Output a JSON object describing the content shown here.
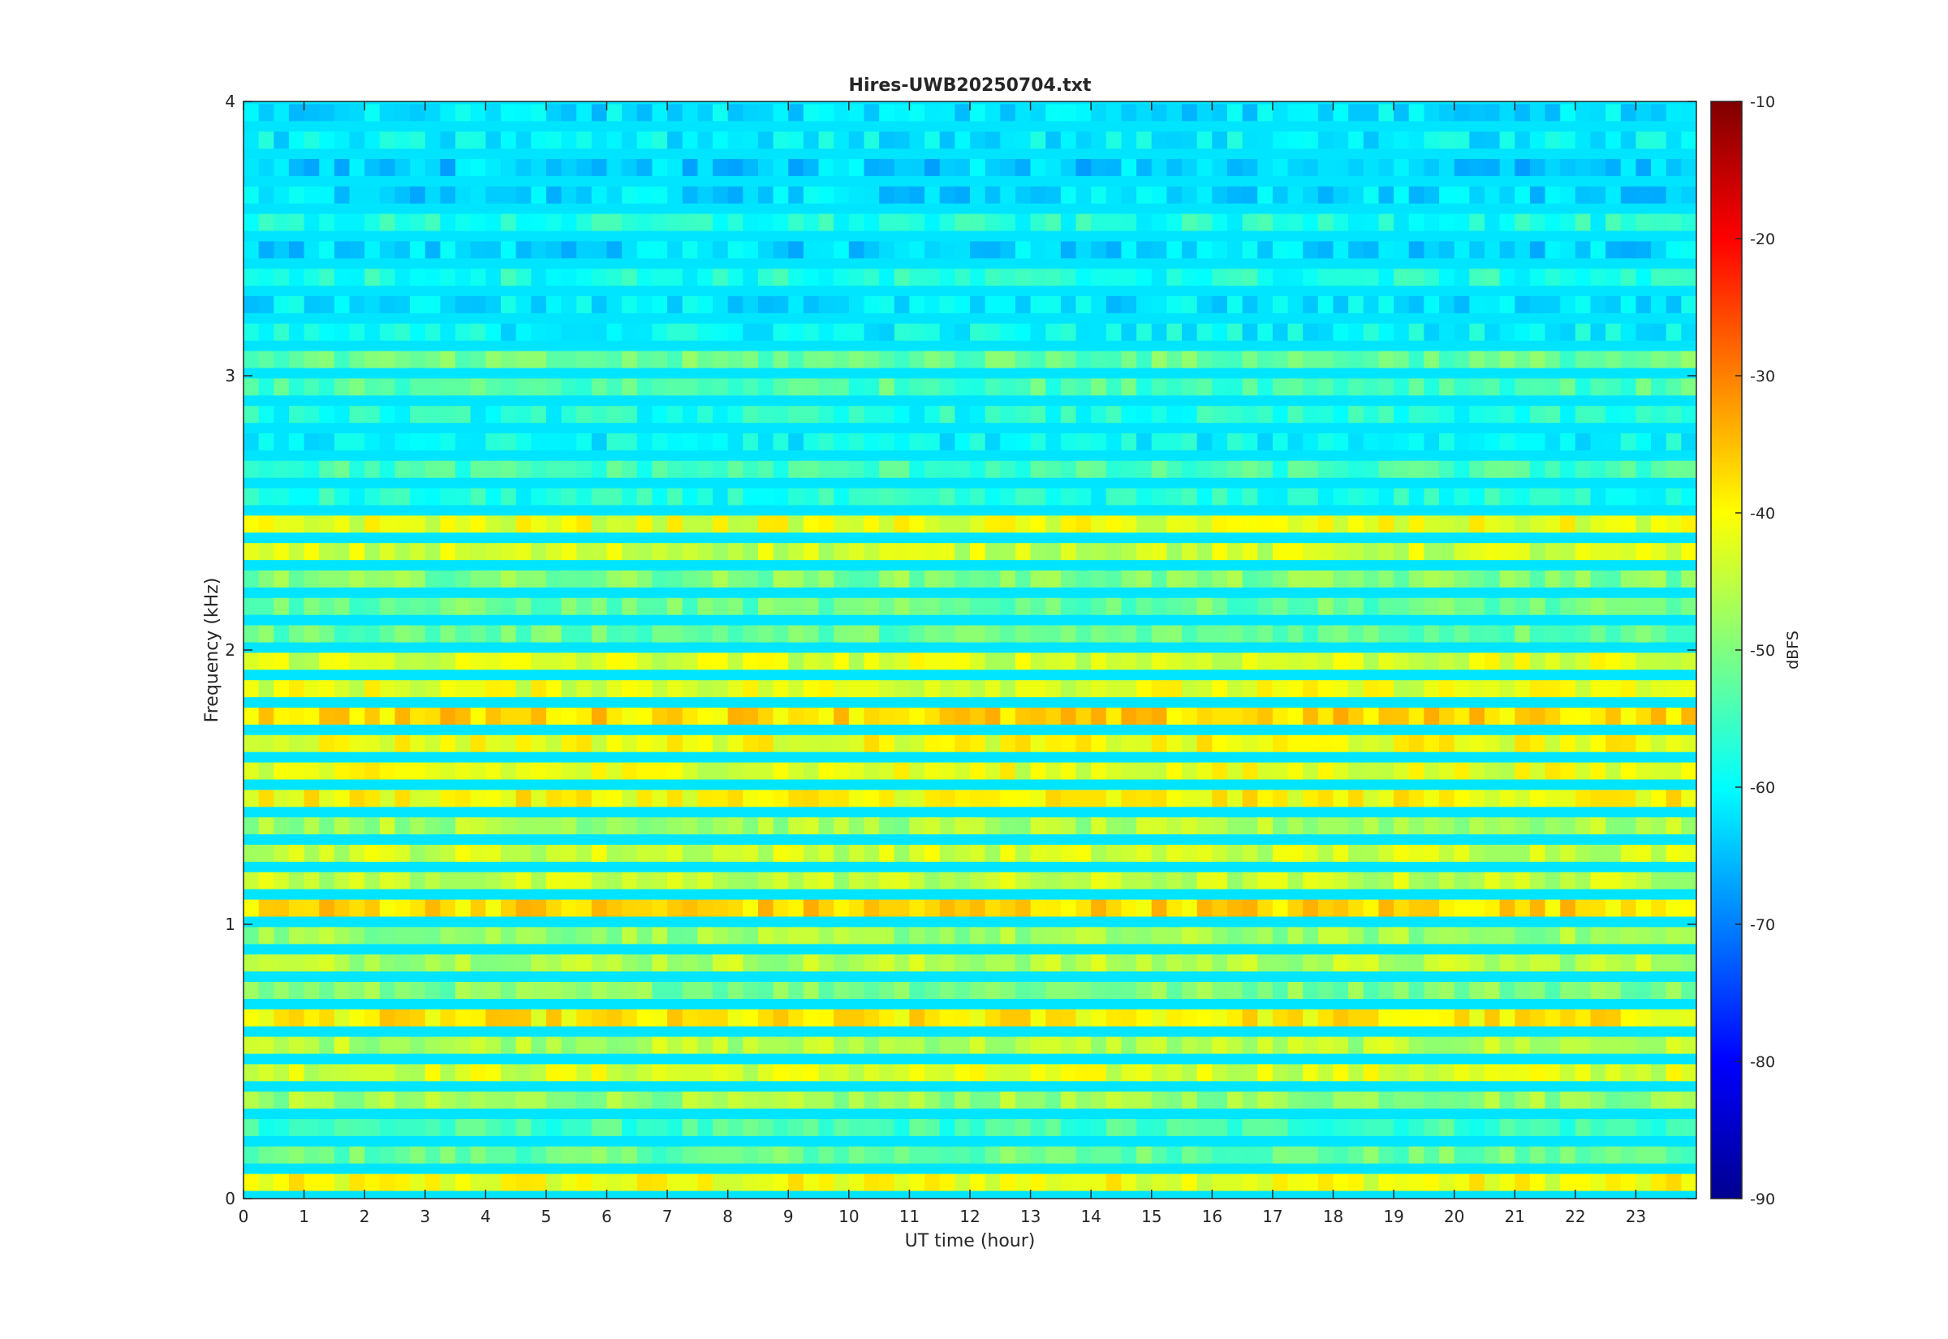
{
  "chart_data": {
    "type": "heatmap",
    "title": "Hires-UWB20250704.txt",
    "xlabel": "UT time (hour)",
    "ylabel": "Frequency (kHz)",
    "xlim": [
      0,
      24
    ],
    "ylim": [
      0,
      4
    ],
    "x_ticks": [
      "0",
      "1",
      "2",
      "3",
      "4",
      "5",
      "6",
      "7",
      "8",
      "9",
      "10",
      "11",
      "12",
      "13",
      "14",
      "15",
      "16",
      "17",
      "18",
      "19",
      "20",
      "21",
      "22",
      "23"
    ],
    "y_ticks": [
      "0",
      "1",
      "2",
      "3",
      "4"
    ],
    "colorbar": {
      "label": "dBFS",
      "range": [
        -90,
        -10
      ],
      "ticks": [
        "-10",
        "-20",
        "-30",
        "-40",
        "-50",
        "-60",
        "-70",
        "-80",
        "-90"
      ],
      "colormap": "jet"
    },
    "bands": [
      {
        "f": 0.04,
        "level": -41
      },
      {
        "f": 0.14,
        "level": -52
      },
      {
        "f": 0.24,
        "level": -55
      },
      {
        "f": 0.34,
        "level": -48
      },
      {
        "f": 0.44,
        "level": -43
      },
      {
        "f": 0.54,
        "level": -46
      },
      {
        "f": 0.64,
        "level": -39
      },
      {
        "f": 0.74,
        "level": -50
      },
      {
        "f": 0.84,
        "level": -46
      },
      {
        "f": 0.94,
        "level": -48
      },
      {
        "f": 1.04,
        "level": -37
      },
      {
        "f": 1.14,
        "level": -45
      },
      {
        "f": 1.24,
        "level": -44
      },
      {
        "f": 1.34,
        "level": -47
      },
      {
        "f": 1.44,
        "level": -40
      },
      {
        "f": 1.54,
        "level": -42
      },
      {
        "f": 1.64,
        "level": -41
      },
      {
        "f": 1.74,
        "level": -37
      },
      {
        "f": 1.84,
        "level": -42
      },
      {
        "f": 1.94,
        "level": -43
      },
      {
        "f": 2.04,
        "level": -52
      },
      {
        "f": 2.14,
        "level": -52
      },
      {
        "f": 2.24,
        "level": -50
      },
      {
        "f": 2.34,
        "level": -44
      },
      {
        "f": 2.44,
        "level": -42
      },
      {
        "f": 2.54,
        "level": -58
      },
      {
        "f": 2.64,
        "level": -55
      },
      {
        "f": 2.74,
        "level": -60
      },
      {
        "f": 2.84,
        "level": -58
      },
      {
        "f": 2.94,
        "level": -54
      },
      {
        "f": 3.04,
        "level": -52
      },
      {
        "f": 3.14,
        "level": -60
      },
      {
        "f": 3.24,
        "level": -62
      },
      {
        "f": 3.34,
        "level": -58
      },
      {
        "f": 3.44,
        "level": -63
      },
      {
        "f": 3.54,
        "level": -58
      },
      {
        "f": 3.64,
        "level": -63
      },
      {
        "f": 3.74,
        "level": -64
      },
      {
        "f": 3.84,
        "level": -61
      },
      {
        "f": 3.94,
        "level": -62
      }
    ]
  }
}
